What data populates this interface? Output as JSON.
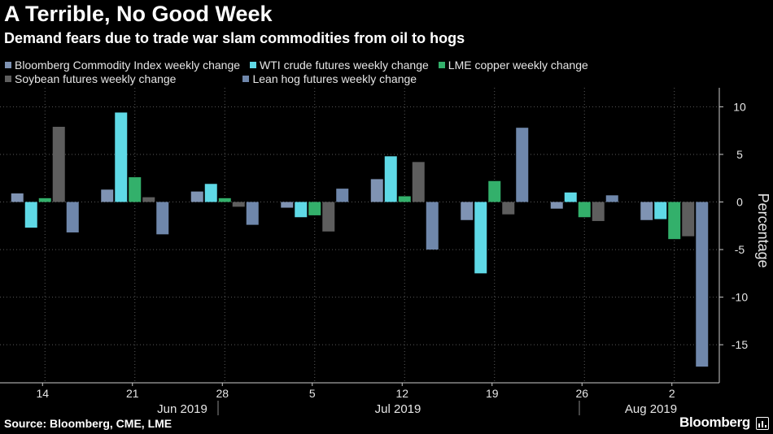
{
  "header": {
    "title": "A Terrible, No Good Week",
    "subtitle": "Demand fears due to trade war slam commodities from oil to hogs"
  },
  "footer": {
    "source": "Source: Bloomberg, CME, LME",
    "brand": "Bloomberg"
  },
  "chart_data": {
    "type": "bar",
    "categories": [
      "14",
      "21",
      "28",
      "5",
      "12",
      "19",
      "26",
      "2"
    ],
    "month_labels": [
      "Jun 2019",
      "Jul 2019",
      "Aug 2019"
    ],
    "ylabel": "Percentage",
    "ylim": [
      -19,
      12
    ],
    "yticks": [
      10,
      5,
      0,
      -5,
      -10,
      -15
    ],
    "grid": true,
    "legend_position": "top-left",
    "series": [
      {
        "name": "Bloomberg Commodity Index weekly change",
        "color": "#7f93b3",
        "values": [
          0.9,
          1.3,
          1.1,
          -0.6,
          2.4,
          -1.9,
          -0.7,
          -1.9
        ]
      },
      {
        "name": "WTI crude futures weekly change",
        "color": "#5fd9e6",
        "values": [
          -2.7,
          9.4,
          1.9,
          -1.6,
          4.8,
          -7.5,
          1.0,
          -1.8
        ]
      },
      {
        "name": "LME copper weekly change",
        "color": "#33b06b",
        "values": [
          0.4,
          2.6,
          0.4,
          -1.4,
          0.6,
          2.2,
          -1.6,
          -3.9
        ]
      },
      {
        "name": "Soybean futures weekly change",
        "color": "#5e5e5e",
        "values": [
          7.9,
          0.5,
          -0.5,
          -3.1,
          4.2,
          -1.3,
          -2.0,
          -3.6
        ]
      },
      {
        "name": "Lean hog futures weekly change",
        "color": "#6f87ab",
        "values": [
          -3.2,
          -3.4,
          -2.4,
          1.4,
          -5.0,
          7.8,
          0.7,
          -17.3
        ]
      }
    ]
  }
}
